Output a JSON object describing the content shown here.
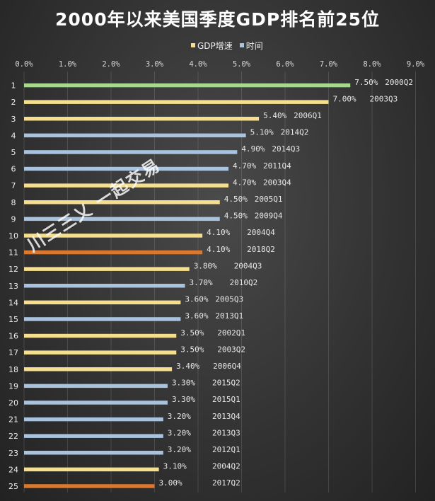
{
  "chart_data": {
    "type": "bar",
    "orientation": "horizontal",
    "title": "2000年以来美国季度GDP排名前25位",
    "legend": [
      {
        "name": "GDP增速",
        "color": "#f5df8e"
      },
      {
        "name": "时间",
        "color": "#a9c3de"
      }
    ],
    "legend_position": "top",
    "x_ticks": [
      "0.0%",
      "1.0%",
      "2.0%",
      "3.0%",
      "4.0%",
      "5.0%",
      "6.0%",
      "7.0%",
      "8.0%",
      "9.0%"
    ],
    "xlim": [
      0,
      9
    ],
    "grid": true,
    "categories": [
      "1",
      "2",
      "3",
      "4",
      "5",
      "6",
      "7",
      "8",
      "9",
      "10",
      "11",
      "12",
      "13",
      "14",
      "15",
      "16",
      "17",
      "18",
      "19",
      "20",
      "21",
      "22",
      "23",
      "24",
      "25"
    ],
    "values": [
      7.5,
      7.0,
      5.4,
      5.1,
      4.9,
      4.7,
      4.7,
      4.5,
      4.5,
      4.1,
      4.1,
      3.8,
      3.7,
      3.6,
      3.6,
      3.5,
      3.5,
      3.4,
      3.3,
      3.3,
      3.2,
      3.2,
      3.2,
      3.1,
      3.0
    ],
    "value_labels": [
      "7.50%",
      "7.00%",
      "5.40%",
      "5.10%",
      "4.90%",
      "4.70%",
      "4.70%",
      "4.50%",
      "4.50%",
      "4.10%",
      "4.10%",
      "3.80%",
      "3.70%",
      "3.60%",
      "3.60%",
      "3.50%",
      "3.50%",
      "3.40%",
      "3.30%",
      "3.30%",
      "3.20%",
      "3.20%",
      "3.20%",
      "3.10%",
      "3.00%"
    ],
    "quarters": [
      "2000Q2",
      "2003Q3",
      "2006Q1",
      "2014Q2",
      "2014Q3",
      "2011Q4",
      "2003Q4",
      "2005Q1",
      "2009Q4",
      "2004Q4",
      "2018Q2",
      "2004Q3",
      "2010Q2",
      "2005Q3",
      "2013Q1",
      "2002Q1",
      "2003Q2",
      "2006Q4",
      "2015Q2",
      "2015Q1",
      "2013Q4",
      "2013Q3",
      "2012Q1",
      "2004Q2",
      "2017Q2"
    ],
    "bar_colors": [
      "#a8d88e",
      "#f5df8e",
      "#f5df8e",
      "#a9c3de",
      "#a9c3de",
      "#a9c3de",
      "#f5df8e",
      "#f5df8e",
      "#a9c3de",
      "#f5df8e",
      "#d9782e",
      "#f5df8e",
      "#a9c3de",
      "#f5df8e",
      "#a9c3de",
      "#f5df8e",
      "#f5df8e",
      "#f5df8e",
      "#a9c3de",
      "#a9c3de",
      "#a9c3de",
      "#a9c3de",
      "#a9c3de",
      "#f5df8e",
      "#d9782e"
    ]
  },
  "watermark": "川三三乂 一起交易"
}
